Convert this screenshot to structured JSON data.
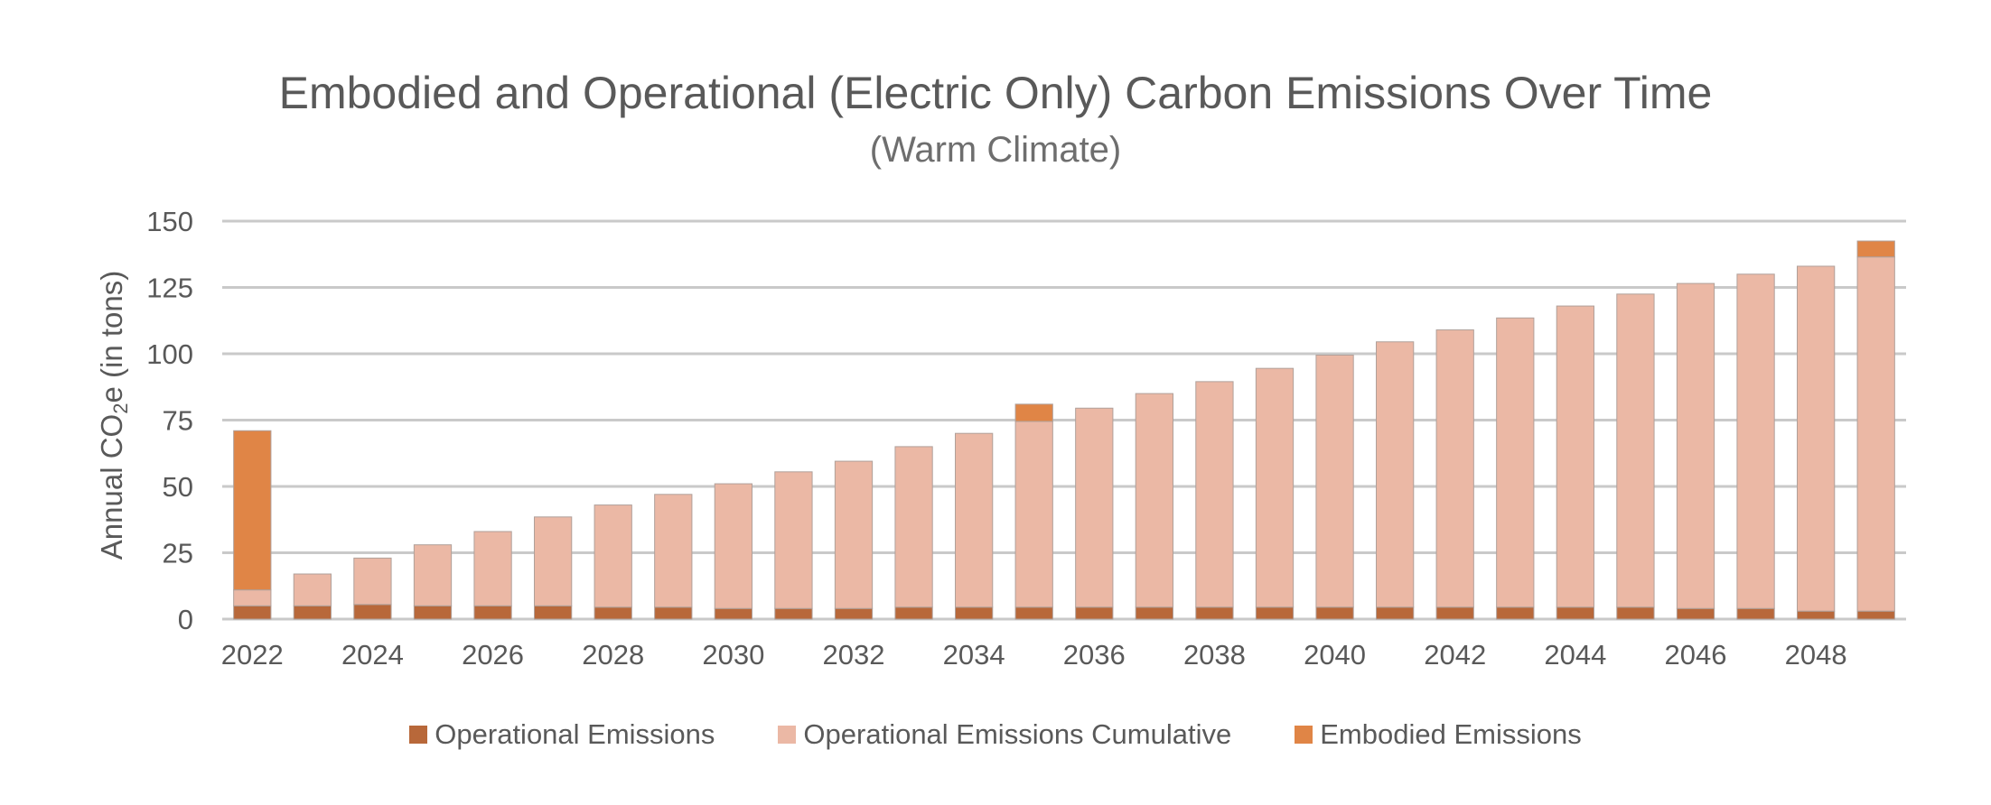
{
  "chart_data": {
    "type": "bar",
    "stacked": true,
    "title": "Embodied and Operational (Electric Only) Carbon Emissions Over Time",
    "subtitle": "(Warm Climate)",
    "ylabel_main": "Annual CO",
    "ylabel_sub": "2",
    "ylabel_tail": "e (in tons)",
    "xlabel": "",
    "ylim": [
      0,
      150
    ],
    "yticks": [
      0,
      25,
      50,
      75,
      100,
      125,
      150
    ],
    "ytick_labels": [
      "0",
      "25",
      "50",
      "75",
      "100",
      "125",
      "150"
    ],
    "grid": true,
    "legend_position": "bottom",
    "categories": [
      "2022",
      "2023",
      "2024",
      "2025",
      "2026",
      "2027",
      "2028",
      "2029",
      "2030",
      "2031",
      "2032",
      "2033",
      "2034",
      "2035",
      "2036",
      "2037",
      "2038",
      "2039",
      "2040",
      "2041",
      "2042",
      "2043",
      "2044",
      "2045",
      "2046",
      "2047",
      "2048",
      "2049"
    ],
    "xtick_labels": [
      "2022",
      "",
      "2024",
      "",
      "2026",
      "",
      "2028",
      "",
      "2030",
      "",
      "2032",
      "",
      "2034",
      "",
      "2036",
      "",
      "2038",
      "",
      "2040",
      "",
      "2042",
      "",
      "2044",
      "",
      "2046",
      "",
      "2048",
      ""
    ],
    "series": [
      {
        "name": "Operational Emissions",
        "color": "#b8683a",
        "values": [
          5,
          5,
          5.5,
          5,
          5,
          5,
          4.5,
          4.5,
          4,
          4,
          4,
          4.5,
          4.5,
          4.5,
          4.5,
          4.5,
          4.5,
          4.5,
          4.5,
          4.5,
          4.5,
          4.5,
          4.5,
          4.5,
          4,
          4,
          3,
          3
        ]
      },
      {
        "name": "Operational Emissions Cumulative",
        "color": "#ebb8a5",
        "values": [
          6,
          12,
          17.5,
          23,
          28,
          33.5,
          38.5,
          42.5,
          47,
          51.5,
          55.5,
          60.5,
          65.5,
          70,
          75,
          80.5,
          85,
          90,
          95,
          100,
          104.5,
          109,
          113.5,
          118,
          122.5,
          126,
          130,
          133.5
        ]
      },
      {
        "name": "Embodied Emissions",
        "color": "#e08546",
        "values": [
          60,
          0,
          0,
          0,
          0,
          0,
          0,
          0,
          0,
          0,
          0,
          0,
          0,
          6.5,
          0,
          0,
          0,
          0,
          0,
          0,
          0,
          0,
          0,
          0,
          0,
          0,
          0,
          6
        ]
      }
    ]
  }
}
